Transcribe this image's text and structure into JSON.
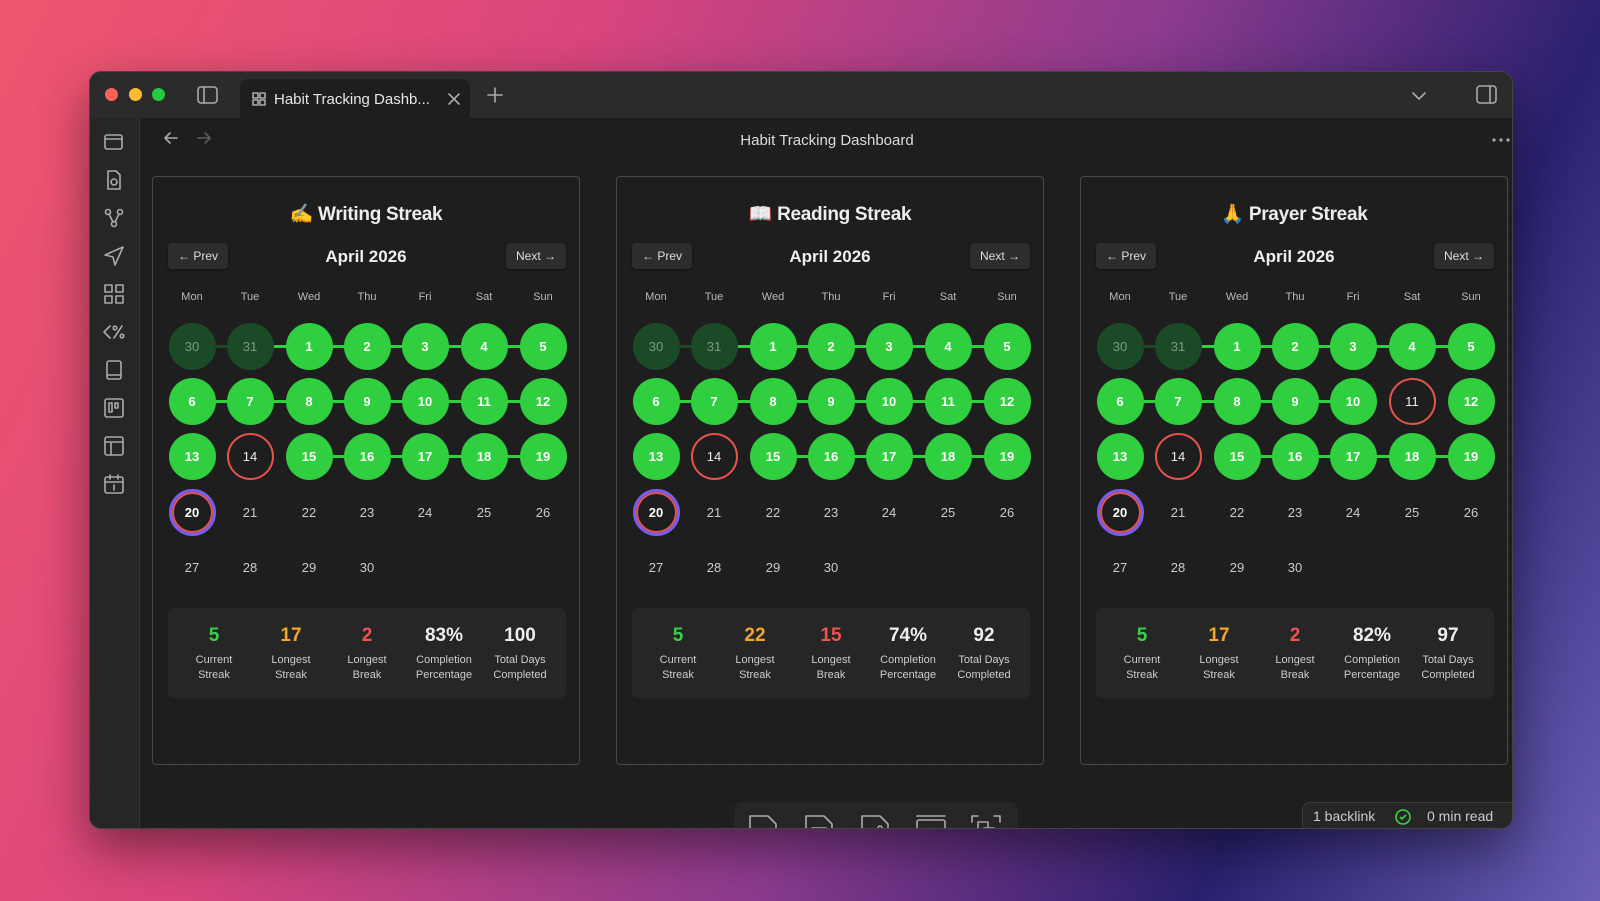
{
  "tab": {
    "title": "Habit Tracking Dashb..."
  },
  "header": {
    "title": "Habit Tracking Dashboard"
  },
  "calendar_common": {
    "prev": "← Prev",
    "next": "Next →",
    "weekdays": [
      "Mon",
      "Tue",
      "Wed",
      "Thu",
      "Fri",
      "Sat",
      "Sun"
    ]
  },
  "cards": [
    {
      "title": "✍️ Writing Streak",
      "month": "April 2026",
      "days": [
        30,
        31,
        1,
        2,
        3,
        4,
        5,
        6,
        7,
        8,
        9,
        10,
        11,
        12,
        13,
        14,
        15,
        16,
        17,
        18,
        19,
        20,
        21,
        22,
        23,
        24,
        25,
        26,
        27,
        28,
        29,
        30
      ],
      "status": [
        "prev",
        "prev",
        "done",
        "done",
        "done",
        "done",
        "done",
        "done",
        "done",
        "done",
        "done",
        "done",
        "done",
        "done",
        "done",
        "missed",
        "done",
        "done",
        "done",
        "done",
        "done",
        "today",
        "none",
        "none",
        "none",
        "none",
        "none",
        "none",
        "none",
        "none",
        "none",
        "none"
      ],
      "stats": [
        {
          "value": "5",
          "label": "Current Streak"
        },
        {
          "value": "17",
          "label": "Longest Streak"
        },
        {
          "value": "2",
          "label": "Longest Break"
        },
        {
          "value": "83%",
          "label": "Completion Percentage"
        },
        {
          "value": "100",
          "label": "Total Days Completed"
        }
      ]
    },
    {
      "title": "📖 Reading Streak",
      "month": "April 2026",
      "days": [
        30,
        31,
        1,
        2,
        3,
        4,
        5,
        6,
        7,
        8,
        9,
        10,
        11,
        12,
        13,
        14,
        15,
        16,
        17,
        18,
        19,
        20,
        21,
        22,
        23,
        24,
        25,
        26,
        27,
        28,
        29,
        30
      ],
      "status": [
        "prev",
        "prev",
        "done",
        "done",
        "done",
        "done",
        "done",
        "done",
        "done",
        "done",
        "done",
        "done",
        "done",
        "done",
        "done",
        "missed",
        "done",
        "done",
        "done",
        "done",
        "done",
        "today",
        "none",
        "none",
        "none",
        "none",
        "none",
        "none",
        "none",
        "none",
        "none",
        "none"
      ],
      "stats": [
        {
          "value": "5",
          "label": "Current Streak"
        },
        {
          "value": "22",
          "label": "Longest Streak"
        },
        {
          "value": "15",
          "label": "Longest Break"
        },
        {
          "value": "74%",
          "label": "Completion Percentage"
        },
        {
          "value": "92",
          "label": "Total Days Completed"
        }
      ]
    },
    {
      "title": "🙏 Prayer Streak",
      "month": "April 2026",
      "days": [
        30,
        31,
        1,
        2,
        3,
        4,
        5,
        6,
        7,
        8,
        9,
        10,
        11,
        12,
        13,
        14,
        15,
        16,
        17,
        18,
        19,
        20,
        21,
        22,
        23,
        24,
        25,
        26,
        27,
        28,
        29,
        30
      ],
      "status": [
        "prev",
        "prev",
        "done",
        "done",
        "done",
        "done",
        "done",
        "done",
        "done",
        "done",
        "done",
        "done",
        "missed",
        "done",
        "done",
        "missed",
        "done",
        "done",
        "done",
        "done",
        "done",
        "today",
        "none",
        "none",
        "none",
        "none",
        "none",
        "none",
        "none",
        "none",
        "none",
        "none"
      ],
      "stats": [
        {
          "value": "5",
          "label": "Current Streak"
        },
        {
          "value": "17",
          "label": "Longest Streak"
        },
        {
          "value": "2",
          "label": "Longest Break"
        },
        {
          "value": "82%",
          "label": "Completion Percentage"
        },
        {
          "value": "97",
          "label": "Total Days Completed"
        }
      ]
    }
  ],
  "status_bar": {
    "backlinks": "1 backlink",
    "read_time": "0 min read"
  }
}
